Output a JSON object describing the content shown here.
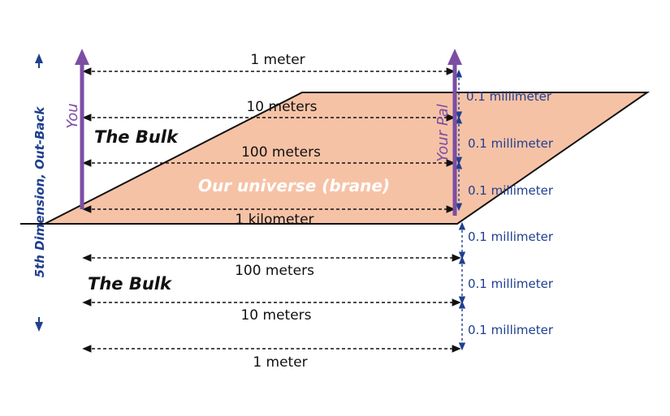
{
  "labels": {
    "you": "You",
    "your_pal": "Your Pal",
    "bulk_upper": "The Bulk",
    "bulk_lower": "The Bulk",
    "brane": "Our universe (brane)",
    "dimension_axis": "5th Dimension, Out-Back"
  },
  "distances": [
    "1 meter",
    "10 meters",
    "100 meters",
    "1 kilometer",
    "100 meters",
    "10 meters",
    "1 meter"
  ],
  "spacings": [
    "0.1 millimeter",
    "0.1 millimeter",
    "0.1 millimeter",
    "0.1 millimeter",
    "0.1 millimeter",
    "0.1 millimeter"
  ],
  "colors": {
    "brane_fill": "#f6c2a6",
    "person_arrow": "#7b4ea3",
    "dimension_blue": "#1f3f8f"
  }
}
